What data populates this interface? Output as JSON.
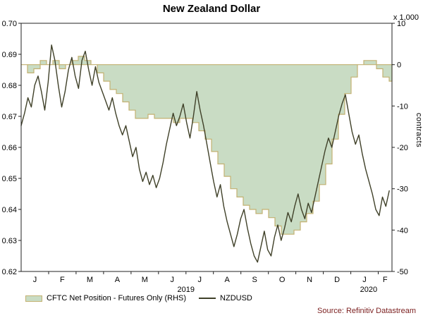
{
  "chart_data": {
    "type": "line",
    "title": "New Zealand Dollar",
    "left_axis": {
      "min": 0.62,
      "max": 0.7,
      "ticks": [
        "0.70",
        "0.69",
        "0.68",
        "0.67",
        "0.66",
        "0.65",
        "0.64",
        "0.63",
        "0.62"
      ]
    },
    "right_axis": {
      "min": -50,
      "max": 10,
      "ticks": [
        "10",
        "0",
        "-10",
        "-20",
        "-30",
        "-40",
        "-50"
      ],
      "unit_label": "x 1,000",
      "axis_title": "contracts"
    },
    "x_axis": {
      "range": [
        0,
        13.5
      ],
      "month_labels": [
        "J",
        "F",
        "M",
        "A",
        "M",
        "J",
        "J",
        "A",
        "S",
        "O",
        "N",
        "D",
        "J",
        "F"
      ],
      "month_positions": [
        0.5,
        1.5,
        2.5,
        3.5,
        4.5,
        5.5,
        6.5,
        7.5,
        8.5,
        9.5,
        10.5,
        11.5,
        12.5,
        13.25
      ],
      "month_ticks": [
        1,
        2,
        3,
        4,
        5,
        6,
        7,
        8,
        9,
        10,
        11,
        12,
        13
      ],
      "year_labels": [
        {
          "label": "2019",
          "pos": 6.0
        },
        {
          "label": "2020",
          "pos": 12.65
        }
      ]
    },
    "series": [
      {
        "name": "CFTC Net Position - Futures Only (RHS)",
        "type": "area-step",
        "axis": "right",
        "fill": "#c9dcc4",
        "stroke": "#c3b171",
        "x_start": 0,
        "x_step": 0.231,
        "values": [
          0,
          -2,
          -1,
          1,
          0,
          1,
          -1,
          0,
          1,
          2,
          1,
          0,
          -2,
          -4,
          -6,
          -7,
          -9,
          -11,
          -13,
          -13,
          -12,
          -13,
          -13,
          -13,
          -14,
          -13,
          -13,
          -14,
          -16,
          -18,
          -21,
          -24,
          -27,
          -30,
          -32,
          -34,
          -35,
          -36,
          -35,
          -37,
          -39,
          -41,
          -41,
          -40,
          -38,
          -36,
          -33,
          -29,
          -24,
          -18,
          -12,
          -7,
          -3,
          0,
          1,
          1,
          -1,
          -3,
          -4
        ]
      },
      {
        "name": "NZDUSD",
        "type": "line",
        "axis": "left",
        "stroke": "#3f4028",
        "x_start": 0,
        "x_step": 0.12294,
        "values": [
          0.667,
          0.671,
          0.676,
          0.673,
          0.68,
          0.683,
          0.678,
          0.672,
          0.681,
          0.693,
          0.688,
          0.68,
          0.673,
          0.678,
          0.685,
          0.689,
          0.683,
          0.679,
          0.688,
          0.691,
          0.685,
          0.68,
          0.686,
          0.681,
          0.678,
          0.675,
          0.672,
          0.676,
          0.671,
          0.667,
          0.664,
          0.667,
          0.662,
          0.657,
          0.66,
          0.653,
          0.649,
          0.652,
          0.648,
          0.651,
          0.647,
          0.65,
          0.655,
          0.661,
          0.666,
          0.671,
          0.667,
          0.67,
          0.674,
          0.668,
          0.663,
          0.67,
          0.678,
          0.672,
          0.667,
          0.661,
          0.655,
          0.649,
          0.644,
          0.648,
          0.641,
          0.636,
          0.632,
          0.628,
          0.632,
          0.637,
          0.64,
          0.634,
          0.629,
          0.625,
          0.623,
          0.628,
          0.633,
          0.627,
          0.625,
          0.631,
          0.635,
          0.63,
          0.634,
          0.639,
          0.636,
          0.641,
          0.645,
          0.64,
          0.637,
          0.642,
          0.639,
          0.644,
          0.649,
          0.654,
          0.659,
          0.663,
          0.66,
          0.665,
          0.67,
          0.674,
          0.677,
          0.671,
          0.665,
          0.661,
          0.664,
          0.658,
          0.653,
          0.649,
          0.645,
          0.64,
          0.638,
          0.644,
          0.641,
          0.646
        ]
      }
    ],
    "legend": [
      {
        "label": "CFTC Net Position - Futures Only (RHS)",
        "swatch": "area"
      },
      {
        "label": "NZDUSD",
        "swatch": "line"
      }
    ],
    "source": "Source: Refinitiv Datastream",
    "colors": {
      "area_fill": "#c9dcc4",
      "area_stroke": "#c3b171",
      "line": "#3f4028",
      "source_text": "#7c2121"
    }
  }
}
